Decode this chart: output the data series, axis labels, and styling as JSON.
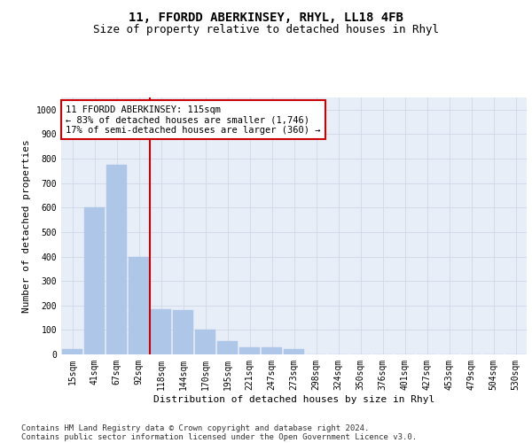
{
  "title": "11, FFORDD ABERKINSEY, RHYL, LL18 4FB",
  "subtitle": "Size of property relative to detached houses in Rhyl",
  "xlabel": "Distribution of detached houses by size in Rhyl",
  "ylabel": "Number of detached properties",
  "categories": [
    "15sqm",
    "41sqm",
    "67sqm",
    "92sqm",
    "118sqm",
    "144sqm",
    "170sqm",
    "195sqm",
    "221sqm",
    "247sqm",
    "273sqm",
    "298sqm",
    "324sqm",
    "350sqm",
    "376sqm",
    "401sqm",
    "427sqm",
    "453sqm",
    "479sqm",
    "504sqm",
    "530sqm"
  ],
  "values": [
    20,
    600,
    775,
    400,
    185,
    180,
    100,
    55,
    30,
    30,
    20,
    0,
    0,
    0,
    0,
    0,
    0,
    0,
    0,
    0,
    0
  ],
  "bar_color": "#aec6e8",
  "bar_edge_color": "#aec6e8",
  "grid_color": "#d0d8e8",
  "background_color": "#e8eef8",
  "vline_x_index": 4,
  "vline_color": "#cc0000",
  "annotation_text": "11 FFORDD ABERKINSEY: 115sqm\n← 83% of detached houses are smaller (1,746)\n17% of semi-detached houses are larger (360) →",
  "annotation_box_color": "#cc0000",
  "ylim": [
    0,
    1050
  ],
  "yticks": [
    0,
    100,
    200,
    300,
    400,
    500,
    600,
    700,
    800,
    900,
    1000
  ],
  "footnote_line1": "Contains HM Land Registry data © Crown copyright and database right 2024.",
  "footnote_line2": "Contains public sector information licensed under the Open Government Licence v3.0.",
  "title_fontsize": 10,
  "subtitle_fontsize": 9,
  "axis_label_fontsize": 8,
  "tick_fontsize": 7,
  "annotation_fontsize": 7.5,
  "footnote_fontsize": 6.5
}
